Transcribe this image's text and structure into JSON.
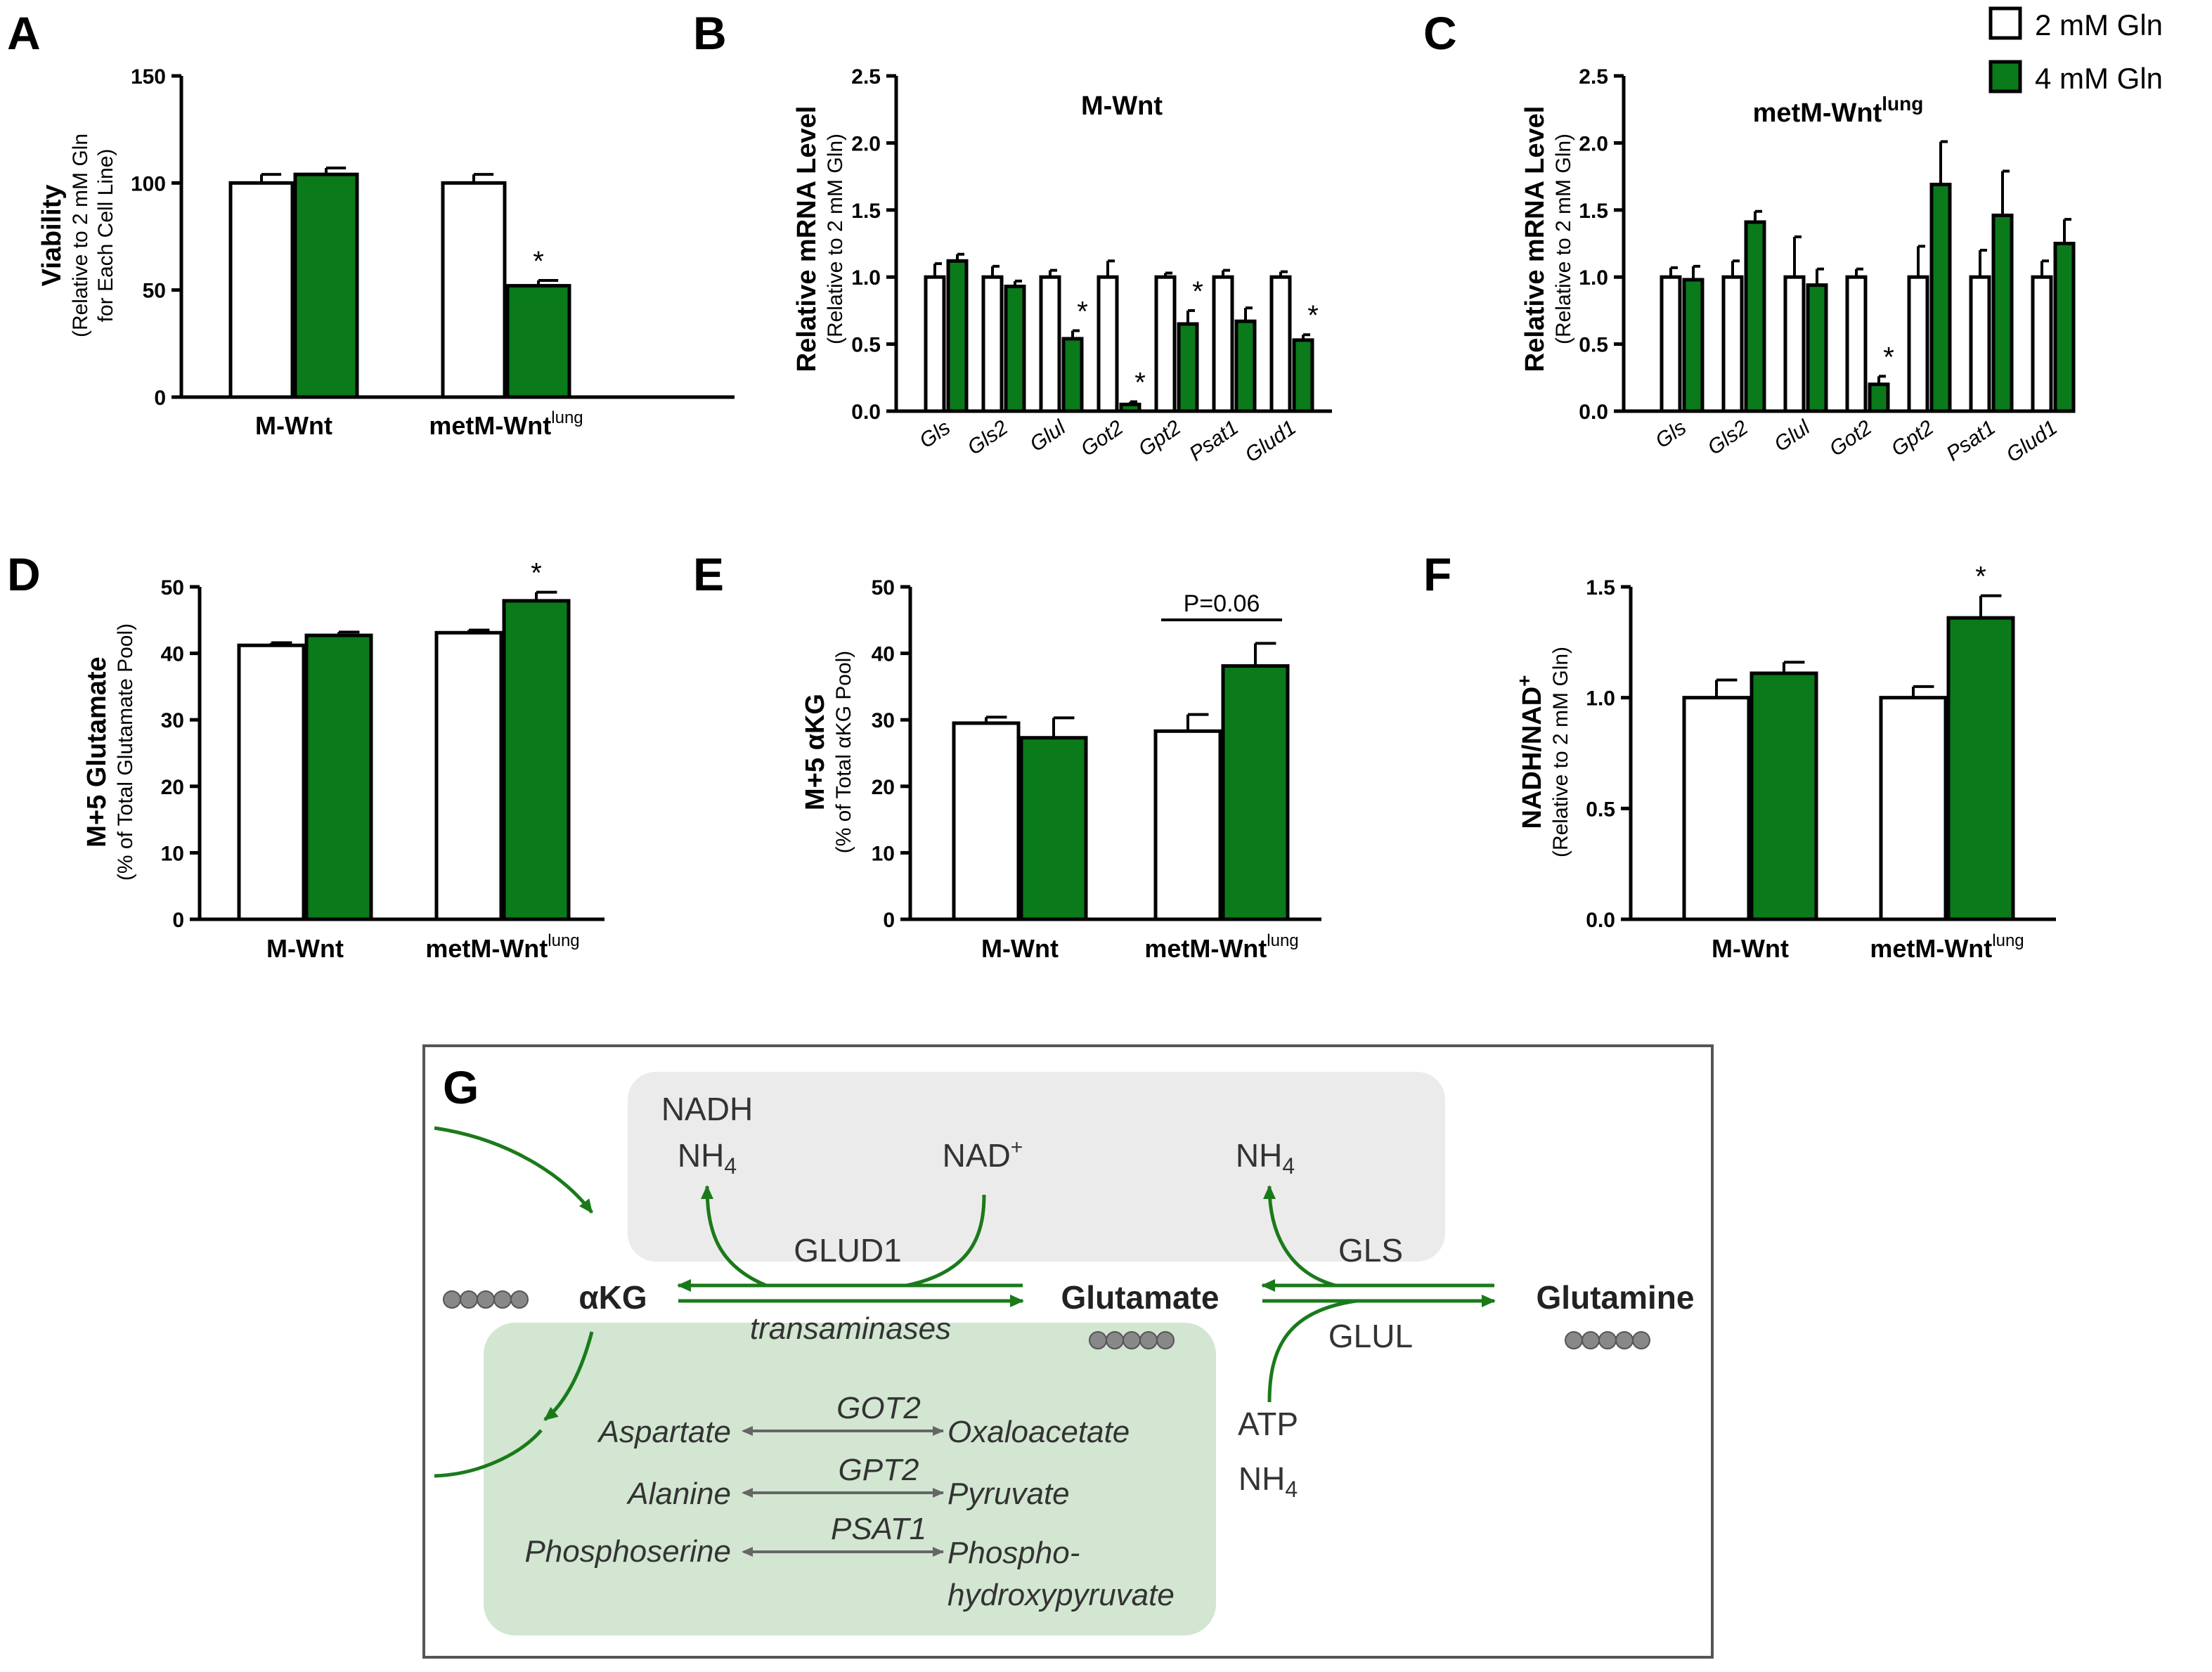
{
  "colors": {
    "control": "#ffffff",
    "treated": "#0a7a1a",
    "outline": "#000000",
    "arrow": "#1a7a1a"
  },
  "legend": {
    "items": [
      "2 mM Gln",
      "4 mM Gln"
    ]
  },
  "panels": {
    "A": {
      "label": "A",
      "ylabel_main": "Viability",
      "ylabel_sub1": "(Relative to 2 mM Gln",
      "ylabel_sub2": "for Each Cell Line)",
      "title": "",
      "cat1": "M-Wnt",
      "cat2": "metM-Wnt",
      "cat2_sup": "lung"
    },
    "B": {
      "label": "B",
      "ylabel_main": "Relative mRNA Level",
      "ylabel_sub1": "(Relative to 2 mM Gln)",
      "title": "M-Wnt"
    },
    "C": {
      "label": "C",
      "ylabel_main": "Relative mRNA Level",
      "ylabel_sub1": "(Relative to 2 mM Gln)",
      "title": "metM-Wnt",
      "title_sup": "lung"
    },
    "D": {
      "label": "D",
      "ylabel_main": "M+5 Glutamate",
      "ylabel_sub1": "(% of Total Glutamate Pool)",
      "cat1": "M-Wnt",
      "cat2": "metM-Wnt",
      "cat2_sup": "lung"
    },
    "E": {
      "label": "E",
      "ylabel_main": "M+5 αKG",
      "ylabel_sub1": "(% of Total αKG Pool)",
      "cat1": "M-Wnt",
      "cat2": "metM-Wnt",
      "cat2_sup": "lung",
      "annotation": "P=0.06"
    },
    "F": {
      "label": "F",
      "ylabel_main": "NADH/NAD",
      "ylabel_main_sup": "+",
      "ylabel_sub1": "(Relative to 2 mM Gln)",
      "cat1": "M-Wnt",
      "cat2": "metM-Wnt",
      "cat2_sup": "lung"
    }
  },
  "chart_data": [
    {
      "id": "A",
      "type": "bar",
      "title": "",
      "ylabel": "Viability (Relative to 2 mM Gln for Each Cell Line)",
      "categories": [
        "M-Wnt",
        "metM-Wntlung"
      ],
      "ylim": [
        0,
        150
      ],
      "yticks": [
        "0",
        "50",
        "100",
        "150"
      ],
      "series": [
        {
          "name": "2 mM Gln",
          "values": [
            100,
            100
          ],
          "errors": [
            4,
            4
          ]
        },
        {
          "name": "4 mM Gln",
          "values": [
            104,
            52
          ],
          "errors": [
            3,
            2.5
          ]
        }
      ],
      "significance": [
        "",
        "*"
      ]
    },
    {
      "id": "B",
      "type": "bar",
      "title": "M-Wnt",
      "ylabel": "Relative mRNA Level (Relative to 2 mM Gln)",
      "categories": [
        "Gls",
        "Gls2",
        "Glul",
        "Got2",
        "Gpt2",
        "Psat1",
        "Glud1"
      ],
      "ylim": [
        0,
        2.5
      ],
      "yticks": [
        "0.0",
        "0.5",
        "1.0",
        "1.5",
        "2.0",
        "2.5"
      ],
      "series": [
        {
          "name": "2 mM Gln",
          "values": [
            1.0,
            1.0,
            1.0,
            1.0,
            1.0,
            1.0,
            1.0
          ],
          "errors": [
            0.1,
            0.08,
            0.05,
            0.12,
            0.03,
            0.05,
            0.04
          ]
        },
        {
          "name": "4 mM Gln",
          "values": [
            1.12,
            0.93,
            0.54,
            0.05,
            0.65,
            0.67,
            0.53
          ],
          "errors": [
            0.05,
            0.04,
            0.06,
            0.02,
            0.1,
            0.1,
            0.04
          ]
        }
      ],
      "significance": [
        "",
        "",
        "*",
        "*",
        "*",
        "",
        "*"
      ]
    },
    {
      "id": "C",
      "type": "bar",
      "title": "metM-Wntlung",
      "ylabel": "Relative mRNA Level (Relative to 2 mM Gln)",
      "categories": [
        "Gls",
        "Gls2",
        "Glul",
        "Got2",
        "Gpt2",
        "Psat1",
        "Glud1"
      ],
      "ylim": [
        0,
        2.5
      ],
      "yticks": [
        "0.0",
        "0.5",
        "1.0",
        "1.5",
        "2.0",
        "2.5"
      ],
      "series": [
        {
          "name": "2 mM Gln",
          "values": [
            1.0,
            1.0,
            1.0,
            1.0,
            1.0,
            1.0,
            1.0
          ],
          "errors": [
            0.07,
            0.12,
            0.3,
            0.06,
            0.23,
            0.2,
            0.12
          ]
        },
        {
          "name": "4 mM Gln",
          "values": [
            0.98,
            1.41,
            0.94,
            0.2,
            1.69,
            1.46,
            1.25
          ],
          "errors": [
            0.1,
            0.08,
            0.12,
            0.06,
            0.32,
            0.33,
            0.18
          ]
        }
      ],
      "significance": [
        "",
        "",
        "",
        "*",
        "",
        "",
        ""
      ]
    },
    {
      "id": "D",
      "type": "bar",
      "title": "",
      "ylabel": "M+5 Glutamate (% of Total Glutamate Pool)",
      "categories": [
        "M-Wnt",
        "metM-Wntlung"
      ],
      "ylim": [
        0,
        50
      ],
      "yticks": [
        "0",
        "10",
        "20",
        "30",
        "40",
        "50"
      ],
      "series": [
        {
          "name": "2 mM Gln",
          "values": [
            41.2,
            43.1
          ],
          "errors": [
            0.4,
            0.4
          ]
        },
        {
          "name": "4 mM Gln",
          "values": [
            42.7,
            47.9
          ],
          "errors": [
            0.5,
            1.3
          ]
        }
      ],
      "significance": [
        "",
        "*"
      ]
    },
    {
      "id": "E",
      "type": "bar",
      "title": "",
      "ylabel": "M+5 αKG (% of Total αKG Pool)",
      "categories": [
        "M-Wnt",
        "metM-Wntlung"
      ],
      "ylim": [
        0,
        50
      ],
      "yticks": [
        "0",
        "10",
        "20",
        "30",
        "40",
        "50"
      ],
      "series": [
        {
          "name": "2 mM Gln",
          "values": [
            29.5,
            28.3
          ],
          "errors": [
            0.9,
            2.5
          ]
        },
        {
          "name": "4 mM Gln",
          "values": [
            27.3,
            38.1
          ],
          "errors": [
            3.0,
            3.4
          ]
        }
      ],
      "significance": [
        "",
        ""
      ]
    },
    {
      "id": "F",
      "type": "bar",
      "title": "",
      "ylabel": "NADH/NAD+ (Relative to 2 mM Gln)",
      "categories": [
        "M-Wnt",
        "metM-Wntlung"
      ],
      "ylim": [
        0,
        1.5
      ],
      "yticks": [
        "0.0",
        "0.5",
        "1.0",
        "1.5"
      ],
      "series": [
        {
          "name": "2 mM Gln",
          "values": [
            1.0,
            1.0
          ],
          "errors": [
            0.08,
            0.05
          ]
        },
        {
          "name": "4 mM Gln",
          "values": [
            1.11,
            1.36
          ],
          "errors": [
            0.05,
            0.1
          ]
        }
      ],
      "significance": [
        "",
        "*"
      ]
    }
  ],
  "diagram": {
    "label": "G",
    "nadh": "NADH",
    "nh4": "NH",
    "nh4_sub": "4",
    "nad": "NAD",
    "nad_sup": "+",
    "glud1": "GLUD1",
    "gls": "GLS",
    "glul": "GLUL",
    "atp": "ATP",
    "akg": "αKG",
    "glutamate": "Glutamate",
    "glutamine": "Glutamine",
    "transaminases": "transaminases",
    "reactions": [
      {
        "left": "Aspartate",
        "enzyme": "GOT2",
        "right": "Oxaloacetate",
        "right2": ""
      },
      {
        "left": "Alanine",
        "enzyme": "GPT2",
        "right": "Pyruvate",
        "right2": ""
      },
      {
        "left": "Phosphoserine",
        "enzyme": "PSAT1",
        "right": "Phospho-",
        "right2": "hydroxypyruvate"
      }
    ]
  }
}
